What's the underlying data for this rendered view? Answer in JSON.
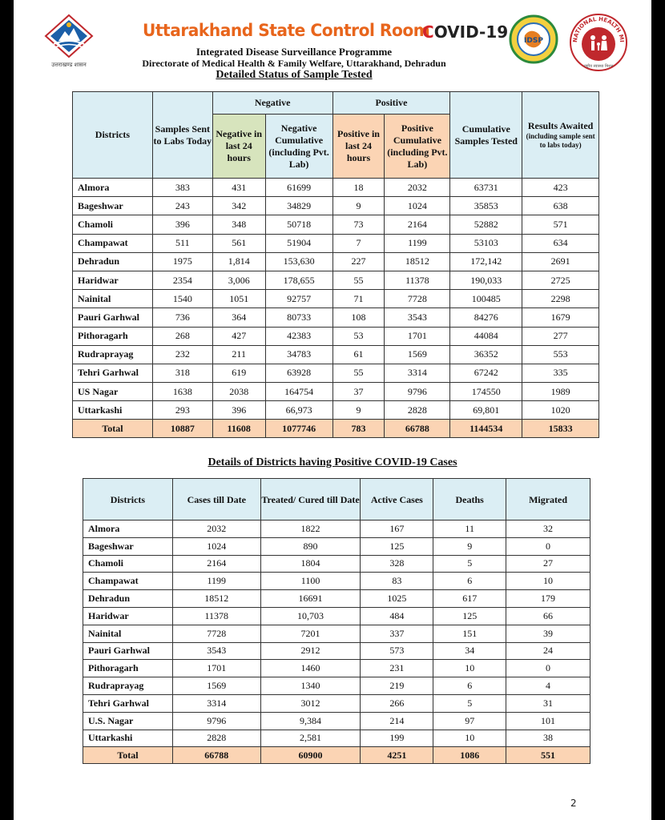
{
  "header": {
    "logo_caption": "उत्तराखण्ड शासन",
    "title": "Uttarakhand State Control Room",
    "covid_label": "OVID-19",
    "covid_letter": "C",
    "programme": "Integrated Disease Surveillance Programme",
    "directorate": "Directorate of Medical Health & Family Welfare, Uttarakhand, Dehradun",
    "section_title": "Detailed Status of Sample Tested",
    "nhm_text": "NATIONAL HEALTH MISSION",
    "nhm_subtext": "राष्ट्रीय स्वास्थ्य मिशन",
    "idsp_text": "IDSP",
    "colors": {
      "title_orange": "#e8651c",
      "covid_red": "#d3232a",
      "header_blue": "#dbeef4",
      "header_orange": "#fbd4b4",
      "header_green": "#d7e4bd"
    }
  },
  "table1": {
    "headers": {
      "districts": "Districts",
      "samples_sent": "Samples Sent to Labs Today",
      "negative_group": "Negative",
      "positive_group": "Positive",
      "neg24": "Negative in last 24 hours",
      "neg_cum": "Negative Cumulative (including Pvt. Lab)",
      "pos24": "Positive in last 24 hours",
      "pos_cum": "Positive Cumulative (including Pvt. Lab)",
      "cum_tested": "Cumulative Samples Tested",
      "results_awaited": "Results Awaited",
      "results_awaited_note": "(including sample sent to labs today)"
    },
    "rows": [
      [
        "Almora",
        "383",
        "431",
        "61699",
        "18",
        "2032",
        "63731",
        "423"
      ],
      [
        "Bageshwar",
        "243",
        "342",
        "34829",
        "9",
        "1024",
        "35853",
        "638"
      ],
      [
        "Chamoli",
        "396",
        "348",
        "50718",
        "73",
        "2164",
        "52882",
        "571"
      ],
      [
        "Champawat",
        "511",
        "561",
        "51904",
        "7",
        "1199",
        "53103",
        "634"
      ],
      [
        "Dehradun",
        "1975",
        "1,814",
        "153,630",
        "227",
        "18512",
        "172,142",
        "2691"
      ],
      [
        "Haridwar",
        "2354",
        "3,006",
        "178,655",
        "55",
        "11378",
        "190,033",
        "2725"
      ],
      [
        "Nainital",
        "1540",
        "1051",
        "92757",
        "71",
        "7728",
        "100485",
        "2298"
      ],
      [
        "Pauri Garhwal",
        "736",
        "364",
        "80733",
        "108",
        "3543",
        "84276",
        "1679"
      ],
      [
        "Pithoragarh",
        "268",
        "427",
        "42383",
        "53",
        "1701",
        "44084",
        "277"
      ],
      [
        "Rudraprayag",
        "232",
        "211",
        "34783",
        "61",
        "1569",
        "36352",
        "553"
      ],
      [
        "Tehri Garhwal",
        "318",
        "619",
        "63928",
        "55",
        "3314",
        "67242",
        "335"
      ],
      [
        "US Nagar",
        "1638",
        "2038",
        "164754",
        "37",
        "9796",
        "174550",
        "1989"
      ],
      [
        "Uttarkashi",
        "293",
        "396",
        "66,973",
        "9",
        "2828",
        "69,801",
        "1020"
      ]
    ],
    "total": [
      "Total",
      "10887",
      "11608",
      "1077746",
      "783",
      "66788",
      "1144534",
      "15833"
    ]
  },
  "table2": {
    "title": "Details of Districts having Positive COVID-19 Cases",
    "headers": [
      "Districts",
      "Cases till Date",
      "Treated/ Cured till Date",
      "Active Cases",
      "Deaths",
      "Migrated"
    ],
    "rows": [
      [
        "Almora",
        "2032",
        "1822",
        "167",
        "11",
        "32"
      ],
      [
        "Bageshwar",
        "1024",
        "890",
        "125",
        "9",
        "0"
      ],
      [
        "Chamoli",
        "2164",
        "1804",
        "328",
        "5",
        "27"
      ],
      [
        "Champawat",
        "1199",
        "1100",
        "83",
        "6",
        "10"
      ],
      [
        "Dehradun",
        "18512",
        "16691",
        "1025",
        "617",
        "179"
      ],
      [
        "Haridwar",
        "11378",
        "10,703",
        "484",
        "125",
        "66"
      ],
      [
        "Nainital",
        "7728",
        "7201",
        "337",
        "151",
        "39"
      ],
      [
        "Pauri Garhwal",
        "3543",
        "2912",
        "573",
        "34",
        "24"
      ],
      [
        "Pithoragarh",
        "1701",
        "1460",
        "231",
        "10",
        "0"
      ],
      [
        "Rudraprayag",
        "1569",
        "1340",
        "219",
        "6",
        "4"
      ],
      [
        "Tehri Garhwal",
        "3314",
        "3012",
        "266",
        "5",
        "31"
      ],
      [
        "U.S. Nagar",
        "9796",
        "9,384",
        "214",
        "97",
        "101"
      ],
      [
        "Uttarkashi",
        "2828",
        "2,581",
        "199",
        "10",
        "38"
      ]
    ],
    "total": [
      "Total",
      "66788",
      "60900",
      "4251",
      "1086",
      "551"
    ]
  },
  "page_number": "2"
}
